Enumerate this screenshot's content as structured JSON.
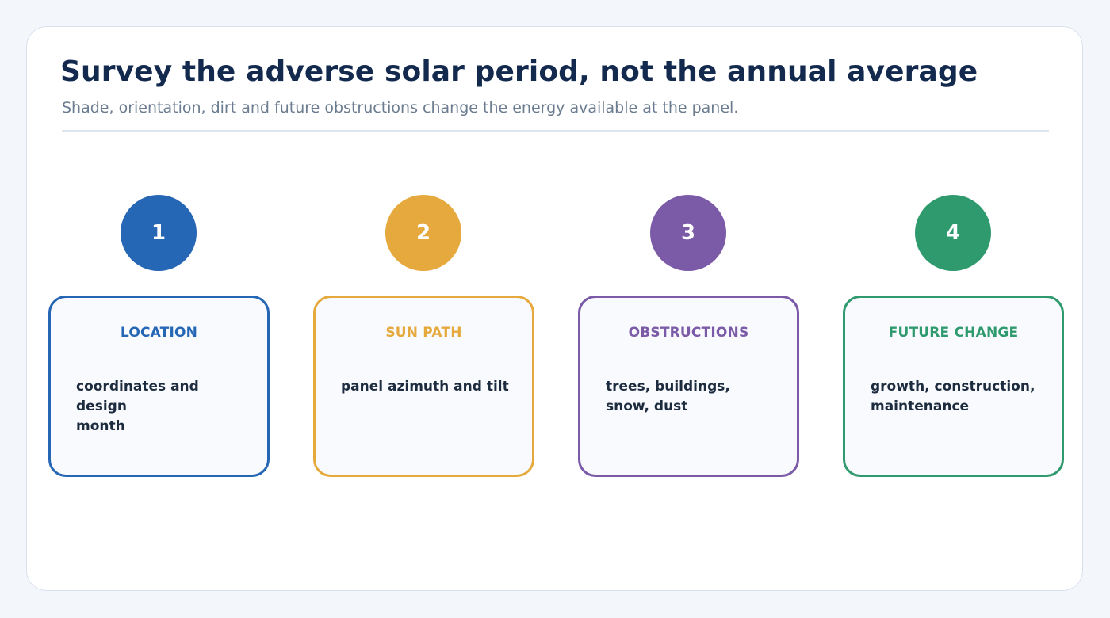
{
  "header": {
    "title": "Survey the adverse solar period, not the annual average",
    "subtitle": "Shade, orientation, dirt and future obstructions change the energy available at the panel."
  },
  "steps": [
    {
      "number": "1",
      "heading": "LOCATION",
      "line1": "coordinates and design",
      "line2": "month",
      "color": "#2667b5"
    },
    {
      "number": "2",
      "heading": "SUN PATH",
      "line1": "panel azimuth and tilt",
      "line2": "",
      "color": "#e5a93d"
    },
    {
      "number": "3",
      "heading": "OBSTRUCTIONS",
      "line1": "trees, buildings,",
      "line2": "snow, dust",
      "color": "#7b5ba7"
    },
    {
      "number": "4",
      "heading": "FUTURE CHANGE",
      "line1": "growth, construction,",
      "line2": "maintenance",
      "color": "#2f9a6d"
    }
  ]
}
